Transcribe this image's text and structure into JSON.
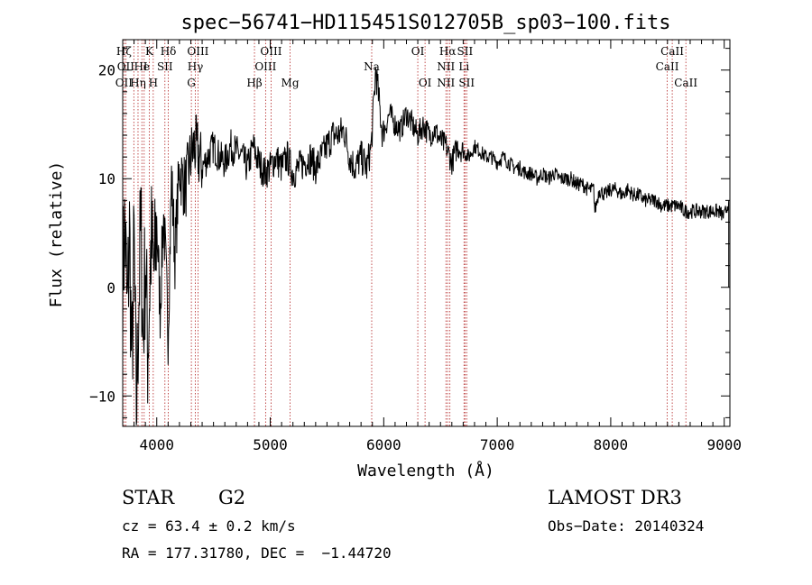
{
  "chart_data": {
    "type": "line",
    "title": "spec−56741−HD115451S012705B_sp03−100.fits",
    "xlabel": "Wavelength (Å)",
    "ylabel": "Flux (relative)",
    "xlim": [
      3700,
      9050
    ],
    "ylim": [
      -12.8,
      22.8
    ],
    "xticks": [
      4000,
      5000,
      6000,
      7000,
      8000,
      9000
    ],
    "yticks": [
      -10,
      0,
      10,
      20
    ],
    "grid": false,
    "series": [
      {
        "name": "flux",
        "x": [
          3700,
          3720,
          3740,
          3760,
          3780,
          3800,
          3820,
          3840,
          3860,
          3880,
          3900,
          3920,
          3950,
          3980,
          4000,
          4030,
          4060,
          4100,
          4130,
          4160,
          4200,
          4250,
          4300,
          4330,
          4360,
          4400,
          4450,
          4500,
          4550,
          4600,
          4650,
          4700,
          4750,
          4800,
          4850,
          4880,
          4900,
          4950,
          5000,
          5050,
          5100,
          5150,
          5200,
          5250,
          5300,
          5350,
          5400,
          5450,
          5500,
          5550,
          5600,
          5650,
          5700,
          5750,
          5800,
          5850,
          5890,
          5930,
          5960,
          5990,
          6050,
          6100,
          6150,
          6200,
          6250,
          6300,
          6350,
          6400,
          6450,
          6500,
          6550,
          6563,
          6600,
          6650,
          6700,
          6750,
          6800,
          6850,
          6900,
          6950,
          7000,
          7050,
          7100,
          7150,
          7200,
          7250,
          7300,
          7350,
          7400,
          7450,
          7500,
          7550,
          7600,
          7650,
          7700,
          7750,
          7800,
          7850,
          7860,
          7900,
          7950,
          8000,
          8050,
          8100,
          8150,
          8200,
          8250,
          8300,
          8350,
          8400,
          8450,
          8500,
          8550,
          8600,
          8650,
          8700,
          8750,
          8800,
          8850,
          8900,
          8950,
          9000,
          9040
        ],
        "y": [
          0.5,
          6,
          -3,
          5,
          -8,
          4,
          -12,
          -2,
          6,
          -5,
          3,
          -6,
          4,
          1,
          6,
          -2,
          7,
          -4,
          10,
          3,
          11,
          9,
          12,
          13,
          12.5,
          11,
          12,
          13,
          12,
          11.5,
          13,
          12.5,
          12,
          11,
          13,
          12,
          11.5,
          10.5,
          11,
          12,
          11,
          12,
          10.5,
          11,
          11.5,
          12,
          11,
          12,
          13,
          14,
          14,
          14.5,
          12,
          11,
          12,
          11,
          13,
          20,
          17,
          14,
          16,
          15,
          14.5,
          16,
          15,
          14,
          15,
          14,
          14.5,
          13.5,
          13,
          12.5,
          11.5,
          13,
          12.5,
          12,
          13,
          12.5,
          12,
          12,
          11.5,
          12,
          11.5,
          11,
          11,
          10.5,
          10.5,
          10,
          10.5,
          10,
          10.5,
          10,
          10,
          10,
          9.5,
          9.5,
          9,
          9,
          7,
          9,
          8.5,
          9,
          9,
          8.5,
          9,
          8.5,
          8.5,
          8,
          8,
          8,
          7.5,
          7.5,
          7.5,
          7.5,
          7,
          7,
          7,
          7,
          7,
          7,
          7,
          6.5,
          8
        ]
      }
    ],
    "lines": [
      {
        "x": 3711,
        "labels": [
          "Hζ",
          "OII"
        ]
      },
      {
        "x": 3727,
        "labels": [
          "OII"
        ]
      },
      {
        "x": 3798,
        "labels": [
          "Hη"
        ]
      },
      {
        "x": 3835,
        "labels": [
          "Hη"
        ]
      },
      {
        "x": 3869,
        "labels": [
          "HeI"
        ]
      },
      {
        "x": 3889,
        "labels": [
          "Hε"
        ]
      },
      {
        "x": 3934,
        "labels": [
          "K"
        ]
      },
      {
        "x": 3969,
        "labels": [
          "H"
        ]
      },
      {
        "x": 4072,
        "labels": [
          "SII"
        ]
      },
      {
        "x": 4102,
        "labels": [
          "Hδ"
        ]
      },
      {
        "x": 4305,
        "labels": [
          "G"
        ]
      },
      {
        "x": 4340,
        "labels": [
          "Hγ"
        ]
      },
      {
        "x": 4363,
        "labels": [
          "OIII"
        ]
      },
      {
        "x": 4861,
        "labels": [
          "Hβ"
        ]
      },
      {
        "x": 4959,
        "labels": [
          "OIII"
        ]
      },
      {
        "x": 5007,
        "labels": [
          "OIII"
        ]
      },
      {
        "x": 5175,
        "labels": [
          "Mg"
        ]
      },
      {
        "x": 5894,
        "labels": [
          "Na"
        ]
      },
      {
        "x": 6300,
        "labels": [
          "OI"
        ]
      },
      {
        "x": 6364,
        "labels": [
          "OI"
        ]
      },
      {
        "x": 6548,
        "labels": [
          "NII"
        ]
      },
      {
        "x": 6563,
        "labels": [
          "Hα"
        ]
      },
      {
        "x": 6583,
        "labels": [
          "NII"
        ]
      },
      {
        "x": 6707,
        "labels": [
          "Li"
        ]
      },
      {
        "x": 6716,
        "labels": [
          "SII"
        ]
      },
      {
        "x": 6731,
        "labels": [
          "SII"
        ]
      },
      {
        "x": 8498,
        "labels": [
          "CaII"
        ]
      },
      {
        "x": 8542,
        "labels": [
          "CaII"
        ]
      },
      {
        "x": 8662,
        "labels": [
          "CaII"
        ]
      }
    ],
    "line_labels": [
      {
        "text": "Hζ",
        "row": 1,
        "x": 3711
      },
      {
        "text": "OII",
        "row": 2,
        "x": 3727
      },
      {
        "text": "OII",
        "row": 3,
        "x": 3711
      },
      {
        "text": "He",
        "row": 2,
        "x": 3869
      },
      {
        "text": "Hη",
        "row": 3,
        "x": 3835
      },
      {
        "text": "K",
        "row": 1,
        "x": 3934
      },
      {
        "text": "I",
        "row": 2,
        "x": 3900
      },
      {
        "text": "H",
        "row": 3,
        "x": 3969
      },
      {
        "text": "SII",
        "row": 2,
        "x": 4072
      },
      {
        "text": "Hδ",
        "row": 1,
        "x": 4102
      },
      {
        "text": "OIII",
        "row": 1,
        "x": 4363
      },
      {
        "text": "Hγ",
        "row": 2,
        "x": 4340
      },
      {
        "text": "G",
        "row": 3,
        "x": 4305
      },
      {
        "text": "Hβ",
        "row": 3,
        "x": 4861
      },
      {
        "text": "OIII",
        "row": 1,
        "x": 5007
      },
      {
        "text": "OIII",
        "row": 2,
        "x": 4959
      },
      {
        "text": "Mg",
        "row": 3,
        "x": 5175
      },
      {
        "text": "Na",
        "row": 2,
        "x": 5894
      },
      {
        "text": "OI",
        "row": 1,
        "x": 6300
      },
      {
        "text": "OI",
        "row": 3,
        "x": 6364
      },
      {
        "text": "Hα",
        "row": 1,
        "x": 6563
      },
      {
        "text": "NII",
        "row": 2,
        "x": 6548
      },
      {
        "text": "NII",
        "row": 3,
        "x": 6548
      },
      {
        "text": "SII",
        "row": 1,
        "x": 6716
      },
      {
        "text": "Li",
        "row": 2,
        "x": 6707
      },
      {
        "text": "SII",
        "row": 3,
        "x": 6731
      },
      {
        "text": "CaII",
        "row": 1,
        "x": 8542
      },
      {
        "text": "CaII",
        "row": 2,
        "x": 8498
      },
      {
        "text": "CaII",
        "row": 3,
        "x": 8662
      }
    ]
  },
  "info": {
    "class": "STAR",
    "subclass": "G2",
    "cz": "cz = 63.4 ± 0.2 km/s",
    "coords": "RA = 177.31780, DEC =  −1.44720",
    "survey": "LAMOST DR3",
    "obs_date": "Obs−Date: 20140324"
  }
}
